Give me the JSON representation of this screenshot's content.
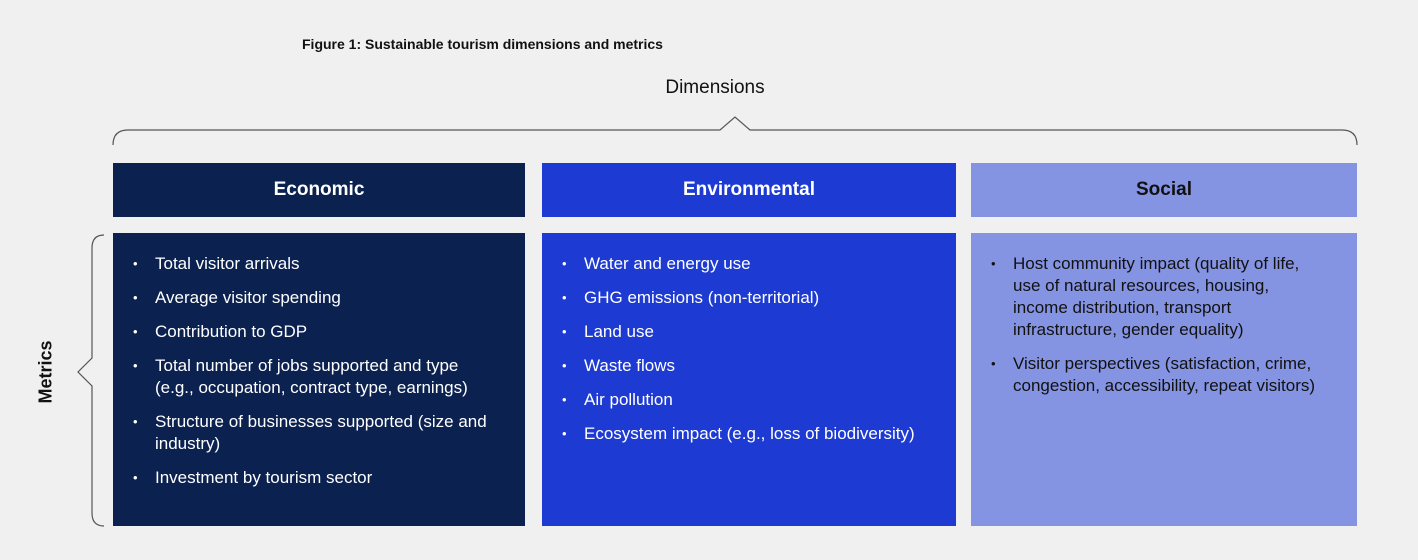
{
  "title": "Figure 1: Sustainable tourism dimensions and metrics",
  "dimensions_label": "Dimensions",
  "metrics_label": "Metrics",
  "columns": [
    {
      "header": "Economic",
      "items": [
        "Total visitor arrivals",
        "Average visitor spending",
        "Contribution to GDP",
        "Total number of jobs supported and type (e.g., occupation, contract type, earnings)",
        "Structure of businesses supported (size and industry)",
        "Investment by tourism sector"
      ]
    },
    {
      "header": "Environmental",
      "items": [
        "Water and energy use",
        "GHG emissions (non-territorial)",
        "Land use",
        "Waste flows",
        "Air pollution",
        "Ecosystem impact (e.g., loss of biodiversity)"
      ]
    },
    {
      "header": "Social",
      "items": [
        "Host community impact (quality of life, use of natural resources, housing, income distribution, transport infrastructure, gender equality)",
        "Visitor perspectives (satisfaction, crime, congestion, accessibility, repeat visitors)"
      ]
    }
  ]
}
